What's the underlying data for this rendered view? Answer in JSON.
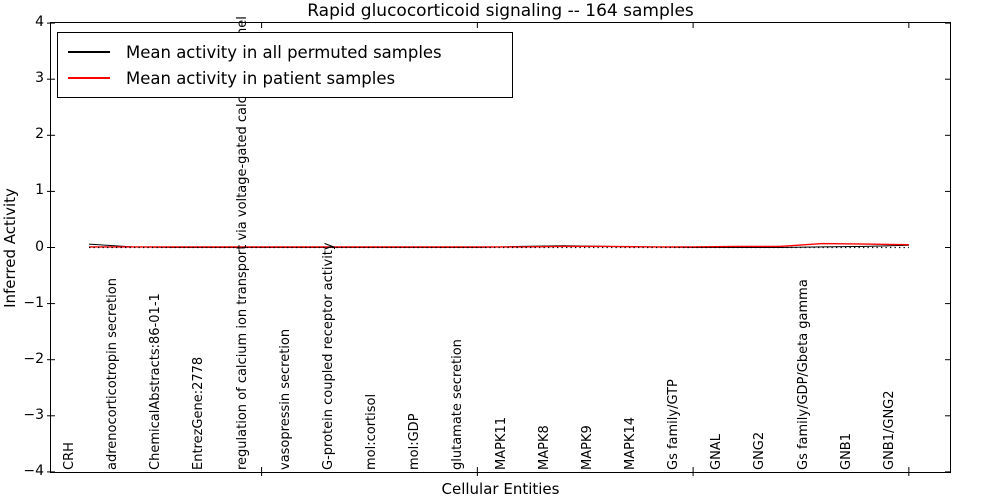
{
  "window": {
    "kind": "matplotlib-figure"
  },
  "legend": {
    "items": [
      {
        "label": "Mean activity in all permuted samples",
        "color": "#000000"
      },
      {
        "label": "Mean activity in patient samples",
        "color": "#ff0000"
      }
    ],
    "position": "upper left"
  },
  "chart_data": {
    "type": "line",
    "title": "Rapid glucocorticoid signaling -- 164 samples",
    "xlabel": "Cellular Entities",
    "ylabel": "Inferred Activity",
    "ylim": [
      -4,
      4
    ],
    "yticks": [
      "4",
      "3",
      "2",
      "1",
      "0",
      "−1",
      "−2",
      "−3",
      "−4"
    ],
    "ytick_values": [
      4,
      3,
      2,
      1,
      0,
      -1,
      -2,
      -3,
      -4
    ],
    "xtick_marks_at_category_indices": [
      4,
      9,
      14,
      19
    ],
    "grid": false,
    "legend_position": "upper left",
    "categories": [
      "CRH",
      "adrenocorticotropin secretion",
      "ChemicalAbstracts:86-01-1",
      "EntrezGene:2778",
      "regulation of calcium ion transport via voltage-gated calcium channel",
      "vasopressin secretion",
      "G-protein coupled receptor activity",
      "mol:cortisol",
      "mol:GDP",
      "glutamate secretion",
      "MAPK11",
      "MAPK8",
      "MAPK9",
      "MAPK14",
      "Gs family/GTP",
      "GNAL",
      "GNG2",
      "Gs family/GDP/Gbeta gamma",
      "GNB1",
      "GNB1/GNG2"
    ],
    "series": [
      {
        "name": "Mean activity in all permuted samples",
        "color": "#000000",
        "style": "solid",
        "width": 1,
        "values": [
          0.06,
          0.01,
          0.0,
          0.0,
          0.0,
          0.0,
          0.0,
          0.0,
          0.0,
          0.0,
          0.02,
          0.03,
          0.02,
          0.01,
          0.0,
          0.0,
          0.0,
          0.01,
          0.02,
          0.04
        ]
      },
      {
        "name": "Mean activity in patient samples",
        "color": "#ff0000",
        "style": "solid",
        "width": 1.4,
        "values": [
          0.01,
          0.01,
          0.01,
          0.01,
          0.01,
          0.01,
          0.01,
          0.01,
          0.01,
          0.01,
          0.01,
          0.02,
          0.02,
          0.01,
          0.01,
          0.02,
          0.02,
          0.07,
          0.06,
          0.05
        ]
      }
    ],
    "baseline": {
      "value": 0,
      "style": "dotted",
      "color": "#000000"
    }
  }
}
